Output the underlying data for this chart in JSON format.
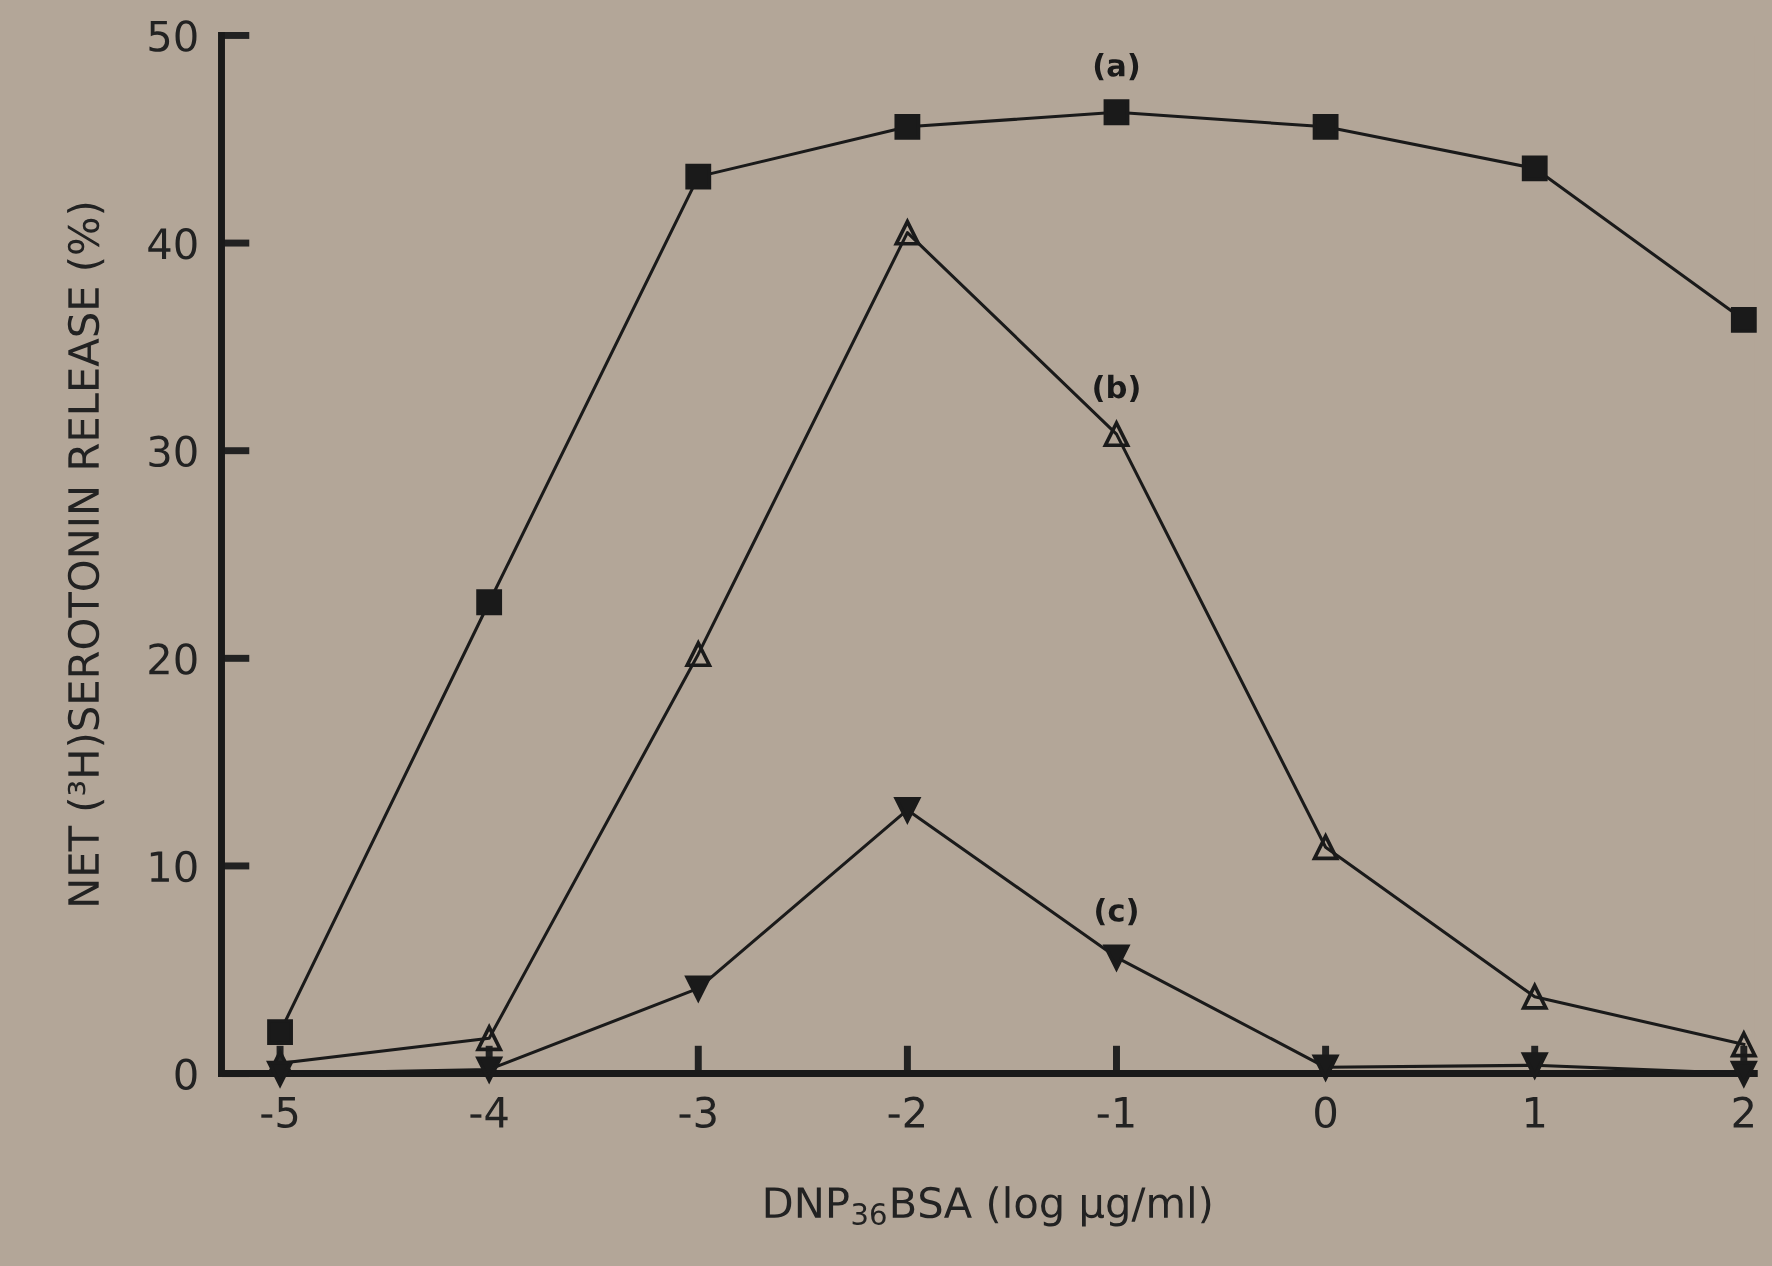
{
  "chart_data": {
    "type": "line",
    "xlabel": "DNP$_{36}$BSA (log µg/ml)",
    "ylabel": "NET (³H)SEROTONIN RELEASE (%)",
    "x": [
      -5,
      -4,
      -3,
      -2,
      -1,
      0,
      1,
      2
    ],
    "series": [
      {
        "name": "(a)",
        "color": "#1a1a1a",
        "marker": "square",
        "values": [
          2.0,
          22.7,
          43.2,
          45.6,
          46.3,
          45.6,
          43.6,
          36.3
        ]
      },
      {
        "name": "(b)",
        "color": "#1a1a1a",
        "marker": "triangle",
        "values": [
          0.5,
          1.7,
          20.2,
          40.5,
          30.8,
          10.9,
          3.7,
          1.4
        ]
      },
      {
        "name": "(c)",
        "color": "#1a1a1a",
        "marker": "triangle_down",
        "values": [
          0.0,
          0.2,
          4.1,
          12.7,
          5.6,
          0.3,
          0.4,
          0.0
        ]
      }
    ],
    "xlim": [
      -5.28,
      2.05
    ],
    "ylim": [
      0,
      50
    ],
    "xticks": [
      -5,
      -4,
      -3,
      -2,
      -1,
      0,
      1,
      2
    ],
    "yticks": [
      0,
      10,
      20,
      30,
      40,
      50
    ],
    "grid": false,
    "legend": false
  }
}
